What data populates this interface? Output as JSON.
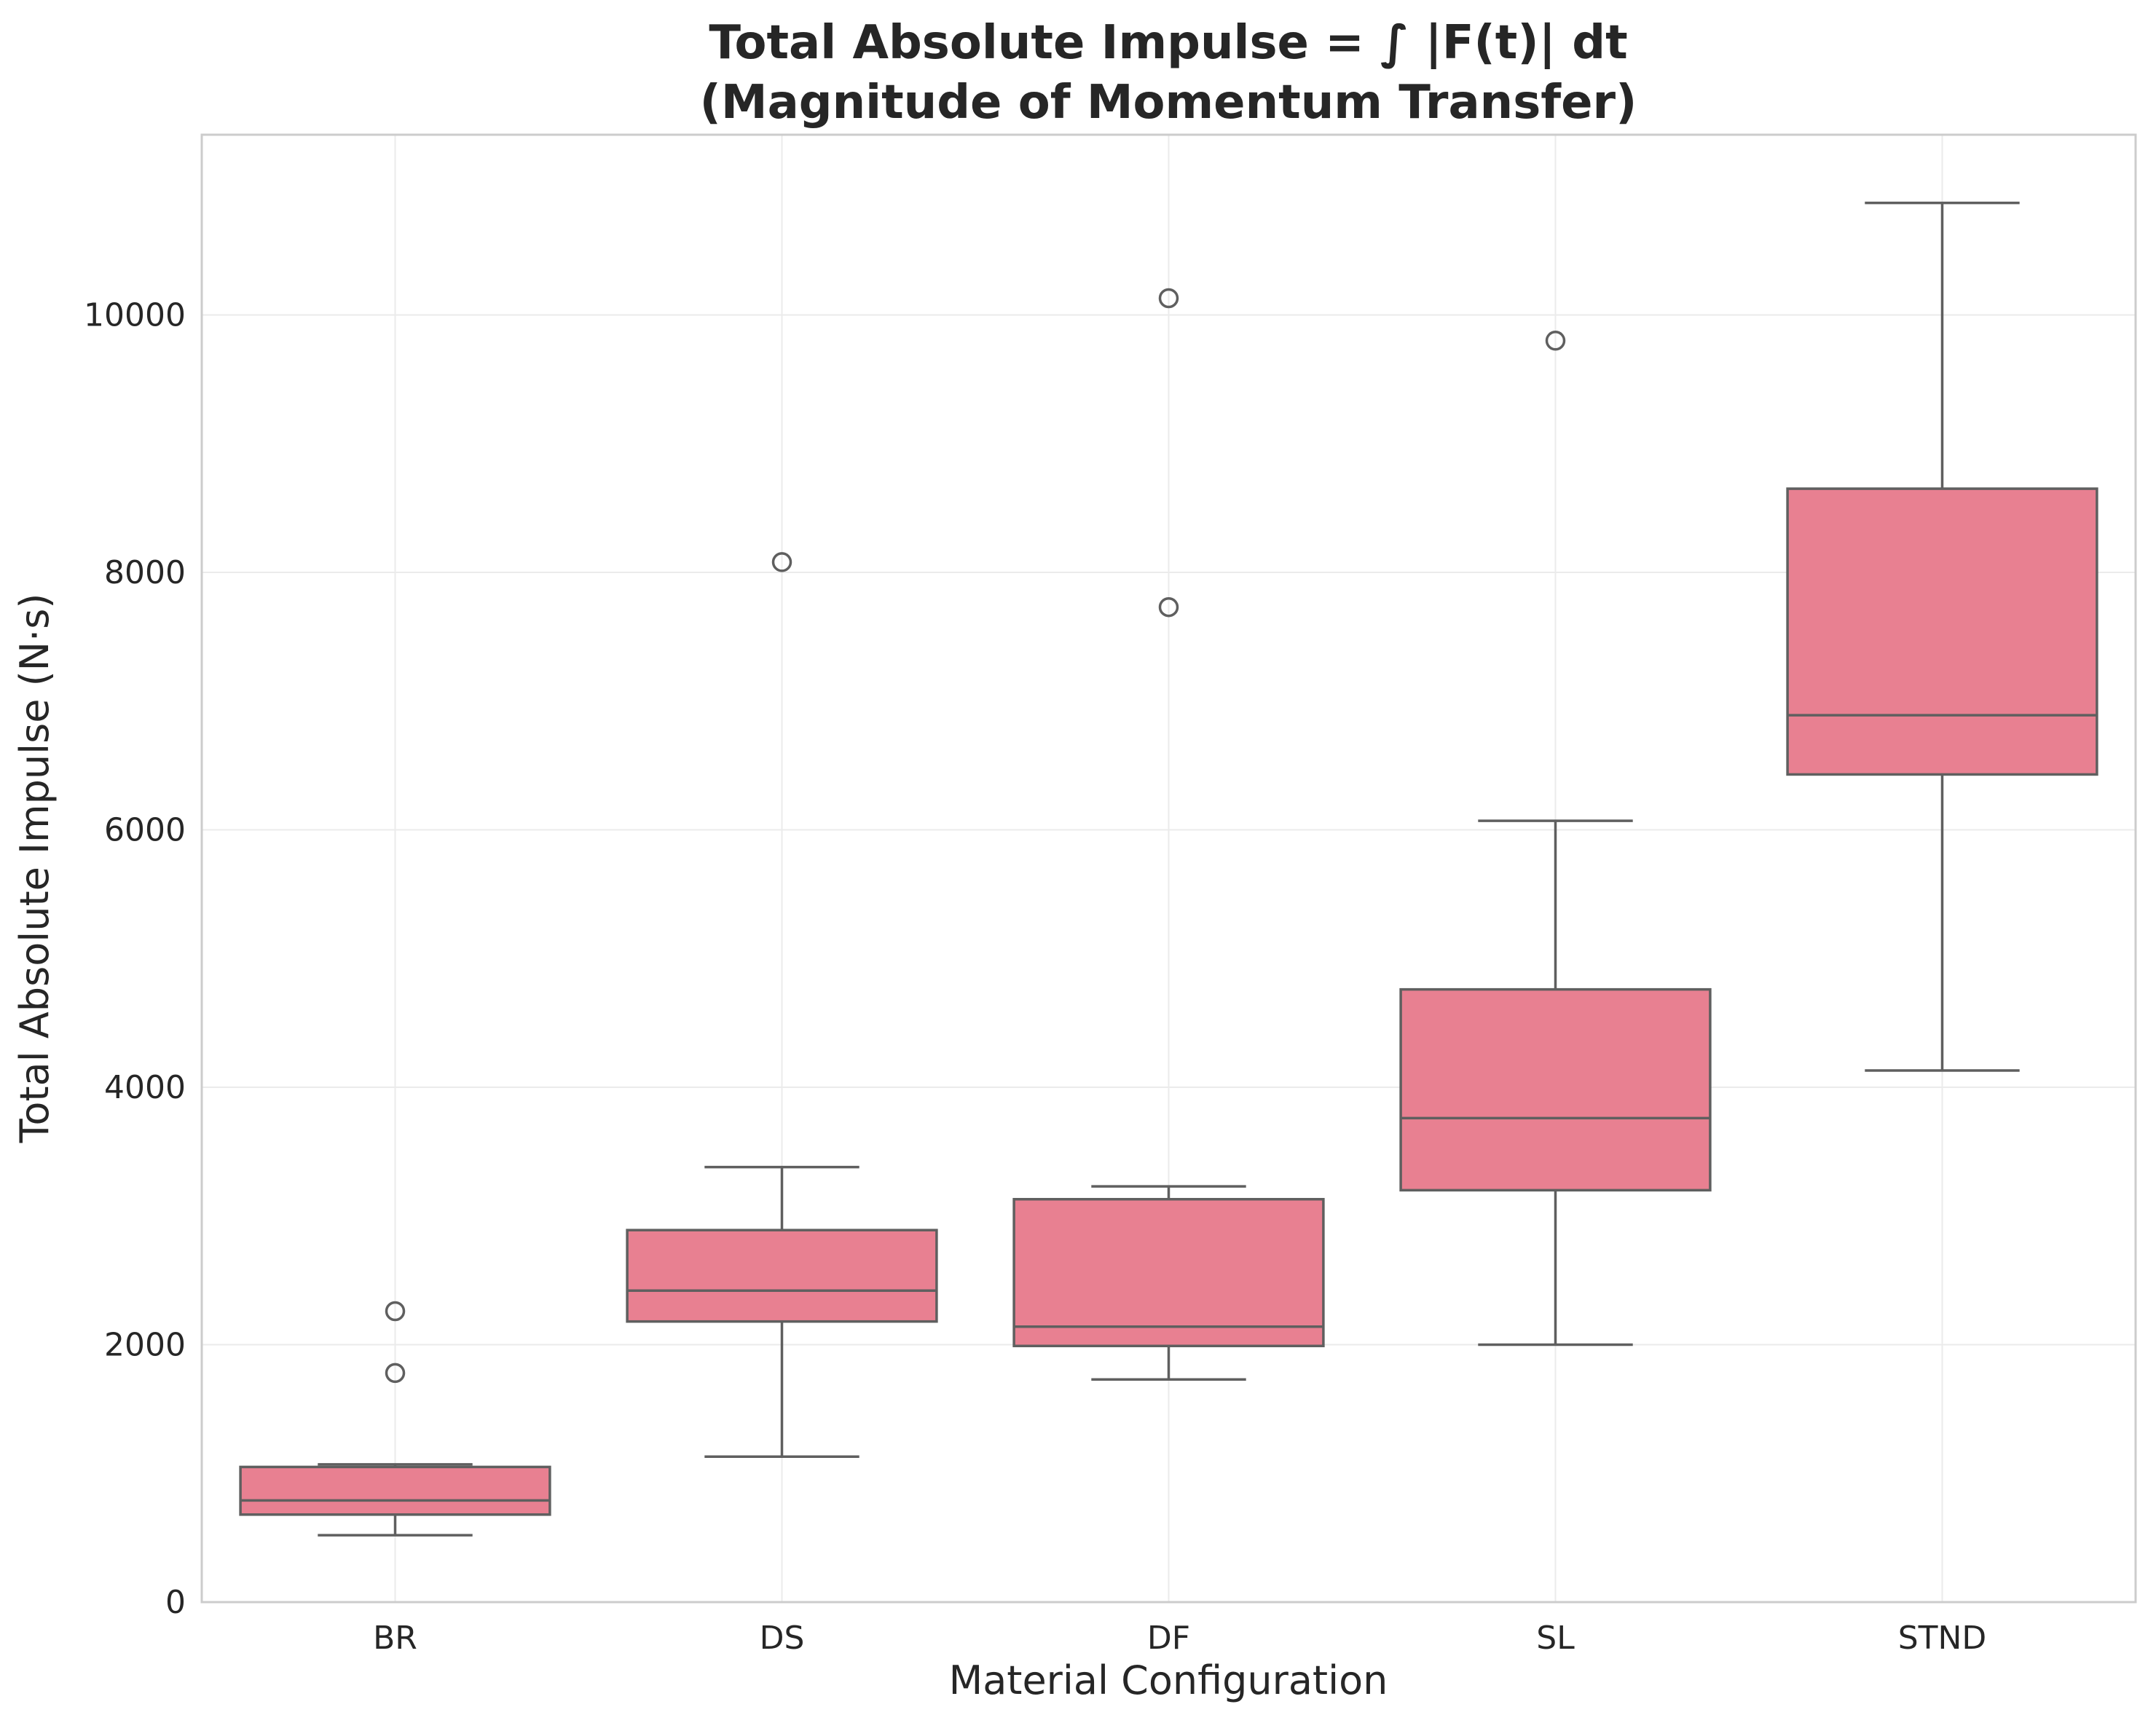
{
  "chart_data": {
    "type": "box",
    "title_lines": [
      "Total Absolute Impulse = ∫ |F(t)| dt",
      "(Magnitude of Momentum Transfer)"
    ],
    "xlabel": "Material Configuration",
    "ylabel": "Total Absolute Impulse (N·s)",
    "ylim": [
      0,
      11400
    ],
    "yticks": [
      0,
      2000,
      4000,
      6000,
      8000,
      10000
    ],
    "grid": true,
    "box_color": "#e88091",
    "line_color": "#5f5f5f",
    "categories": [
      "BR",
      "DS",
      "DF",
      "SL",
      "STND"
    ],
    "boxes": [
      {
        "category": "BR",
        "whisker_low": 520,
        "q1": 680,
        "median": 790,
        "q3": 1050,
        "whisker_high": 1070,
        "outliers": [
          1780,
          2260
        ]
      },
      {
        "category": "DS",
        "whisker_low": 1130,
        "q1": 2180,
        "median": 2420,
        "q3": 2890,
        "whisker_high": 3380,
        "outliers": [
          8080
        ]
      },
      {
        "category": "DF",
        "whisker_low": 1730,
        "q1": 1990,
        "median": 2140,
        "q3": 3130,
        "whisker_high": 3230,
        "outliers": [
          7730,
          10130
        ]
      },
      {
        "category": "SL",
        "whisker_low": 2000,
        "q1": 3200,
        "median": 3760,
        "q3": 4760,
        "whisker_high": 6070,
        "outliers": [
          9800
        ]
      },
      {
        "category": "STND",
        "whisker_low": 4130,
        "q1": 6430,
        "median": 6890,
        "q3": 8650,
        "whisker_high": 10870,
        "outliers": []
      }
    ]
  }
}
